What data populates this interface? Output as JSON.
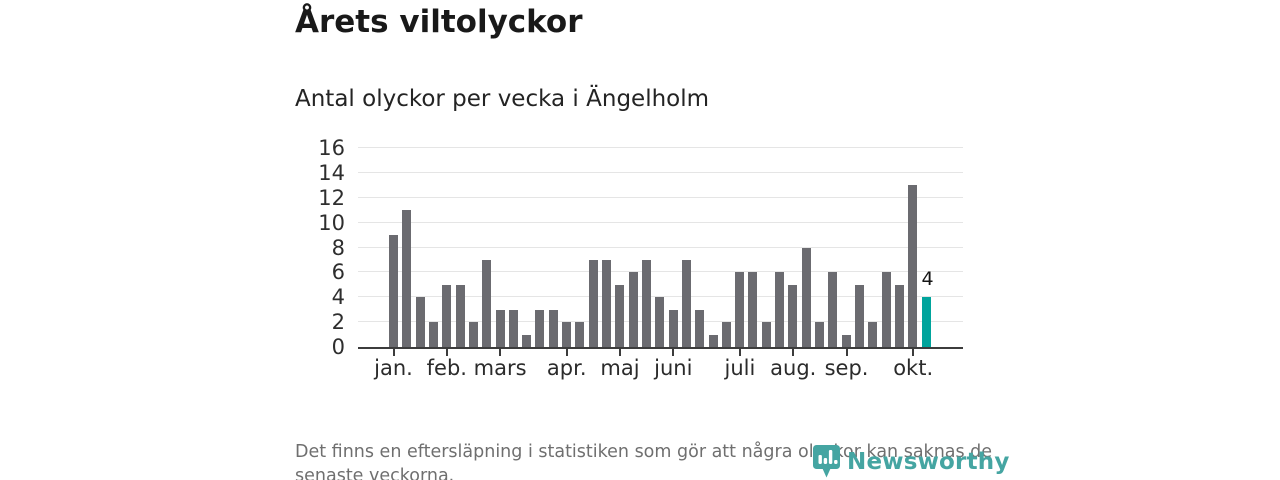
{
  "chart_data": {
    "type": "bar",
    "title": "Årets viltolyckor",
    "subtitle": "Antal olyckor per vecka i Ängelholm",
    "values": [
      9,
      11,
      4,
      2,
      5,
      5,
      2,
      7,
      3,
      3,
      1,
      3,
      3,
      2,
      2,
      7,
      7,
      5,
      6,
      7,
      4,
      3,
      7,
      3,
      1,
      2,
      6,
      6,
      2,
      6,
      5,
      8,
      2,
      6,
      1,
      5,
      2,
      6,
      5,
      13,
      4
    ],
    "x_unit": "vecka",
    "month_ticks": [
      {
        "label": "jan.",
        "week_index": 0
      },
      {
        "label": "feb.",
        "week_index": 4
      },
      {
        "label": "mars",
        "week_index": 8
      },
      {
        "label": "apr.",
        "week_index": 13
      },
      {
        "label": "maj",
        "week_index": 17
      },
      {
        "label": "juni",
        "week_index": 21
      },
      {
        "label": "juli",
        "week_index": 26
      },
      {
        "label": "aug.",
        "week_index": 30
      },
      {
        "label": "sep.",
        "week_index": 34
      },
      {
        "label": "okt.",
        "week_index": 39
      }
    ],
    "yticks": [
      0,
      2,
      4,
      6,
      8,
      10,
      12,
      14,
      16
    ],
    "ylim": [
      0,
      16
    ],
    "xlabel": "",
    "ylabel": "",
    "grid": "horizontal",
    "legend": "none",
    "highlight_index": 40,
    "data_label": {
      "text": "4",
      "index": 40
    },
    "colors": {
      "bar": "#6b6b70",
      "highlight": "#00a49c",
      "axis": "#3c3c3c",
      "grid": "#e5e5e5"
    }
  },
  "footer": {
    "line1": "Det finns en eftersläpning i statistiken som gör att några olyckor kan saknas de",
    "line2": "senaste veckorna."
  },
  "logo": {
    "text": "Newsworthy",
    "color": "#45a5a2",
    "icon": "newsworthy-pin-bar-chart-icon"
  }
}
